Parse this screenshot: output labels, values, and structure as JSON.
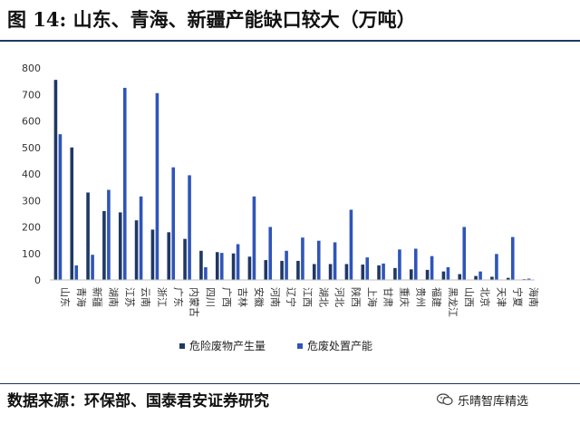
{
  "title": "图 14:  山东、青海、新疆产能缺口较大（万吨）",
  "source": "数据来源：环保部、国泰君安证券研究",
  "watermark": "乐晴智库精选",
  "colors": {
    "produced": "#1f3864",
    "capacity": "#2f55b8",
    "rule": "#1f3864"
  },
  "chart_data": {
    "type": "bar",
    "categories": [
      "山东",
      "青海",
      "新疆",
      "湖南",
      "江苏",
      "云南",
      "浙江",
      "广东",
      "内蒙古",
      "四川",
      "广西",
      "吉林",
      "安徽",
      "河南",
      "辽宁",
      "江西",
      "湖北",
      "河北",
      "陕西",
      "上海",
      "甘肃",
      "重庆",
      "贵州",
      "福建",
      "黑龙江",
      "山西",
      "北京",
      "天津",
      "宁夏",
      "海南"
    ],
    "series": [
      {
        "name": "危险废物产生量",
        "values": [
          755,
          500,
          330,
          260,
          255,
          225,
          190,
          180,
          155,
          110,
          105,
          100,
          88,
          75,
          72,
          72,
          60,
          60,
          60,
          58,
          55,
          45,
          40,
          38,
          32,
          22,
          15,
          12,
          8,
          3
        ]
      },
      {
        "name": "危废处置产能",
        "values": [
          550,
          55,
          95,
          340,
          725,
          315,
          705,
          425,
          395,
          48,
          102,
          135,
          315,
          200,
          110,
          160,
          148,
          142,
          265,
          85,
          62,
          115,
          118,
          90,
          48,
          200,
          32,
          98,
          162,
          5
        ]
      }
    ],
    "ylim": [
      0,
      800
    ],
    "yticks": [
      0,
      100,
      200,
      300,
      400,
      500,
      600,
      700,
      800
    ],
    "legend_position": "bottom",
    "grid": false
  }
}
